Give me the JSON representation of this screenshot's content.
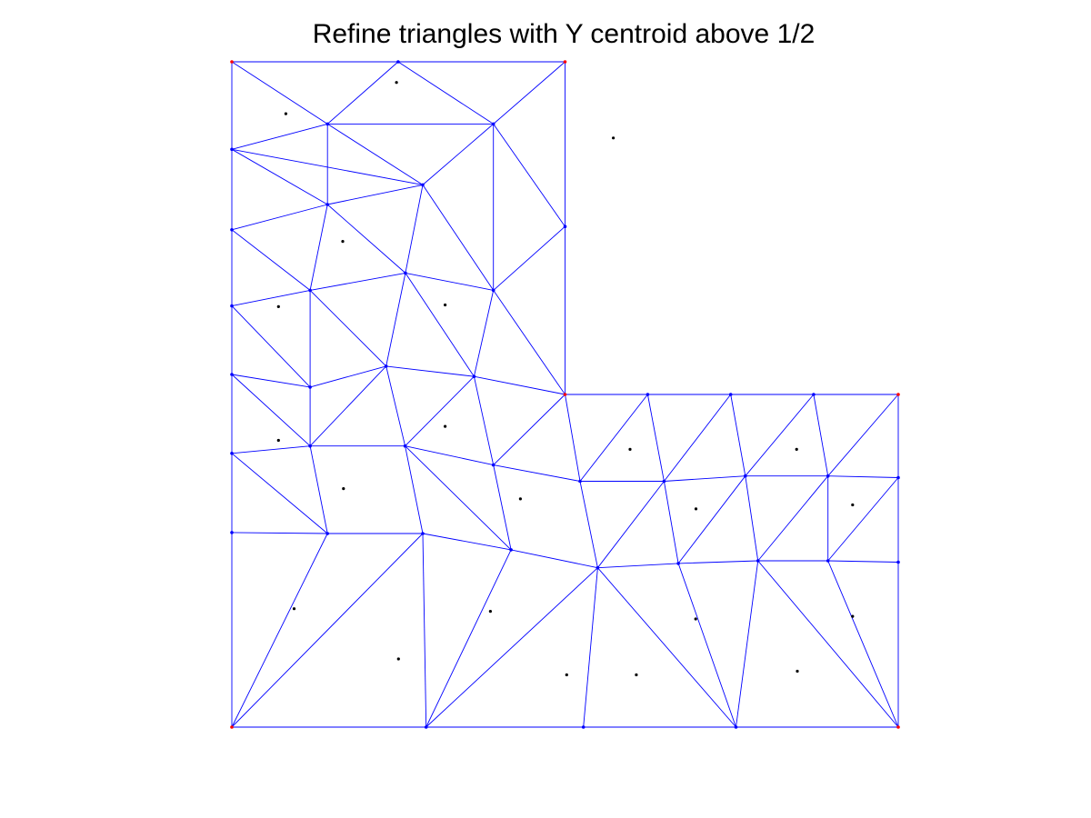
{
  "title": "Refine triangles with Y centroid above 1/2",
  "colors": {
    "background": "#ffffff",
    "edge": "#0000ff",
    "node": "#0000ff",
    "corner_node": "#ff0000",
    "centroid": "#000000",
    "title": "#000000"
  },
  "mesh": {
    "description_units": "data coordinates, x in [-1,1], y in [-1,1] (L-shaped domain)",
    "corner_nodes": [
      [
        -1,
        1
      ],
      [
        0,
        1
      ],
      [
        0,
        0
      ],
      [
        1,
        0
      ],
      [
        1,
        -1
      ],
      [
        -1,
        -1
      ]
    ],
    "nodes": [
      [
        -1.0,
        1.0
      ],
      [
        -0.501,
        1.0
      ],
      [
        0.0,
        1.0
      ],
      [
        -0.713,
        0.813
      ],
      [
        -0.215,
        0.813
      ],
      [
        -1.0,
        0.737
      ],
      [
        -0.427,
        0.63
      ],
      [
        -0.713,
        0.571
      ],
      [
        0.0,
        0.505
      ],
      [
        -1.0,
        0.495
      ],
      [
        -0.479,
        0.365
      ],
      [
        -0.215,
        0.313
      ],
      [
        -0.765,
        0.313
      ],
      [
        -1.0,
        0.266
      ],
      [
        -0.537,
        0.085
      ],
      [
        -0.273,
        0.054
      ],
      [
        -0.765,
        0.022
      ],
      [
        -1.0,
        0.06
      ],
      [
        0.0,
        0.0
      ],
      [
        0.248,
        0.0
      ],
      [
        0.497,
        0.0
      ],
      [
        0.746,
        0.0
      ],
      [
        1.0,
        0.0
      ],
      [
        -0.765,
        -0.155
      ],
      [
        -1.0,
        -0.177
      ],
      [
        -0.48,
        -0.155
      ],
      [
        -0.215,
        -0.212
      ],
      [
        0.045,
        -0.261
      ],
      [
        0.297,
        -0.261
      ],
      [
        0.541,
        -0.245
      ],
      [
        0.789,
        -0.245
      ],
      [
        1.0,
        -0.25
      ],
      [
        -1.0,
        -0.415
      ],
      [
        -0.713,
        -0.418
      ],
      [
        -0.427,
        -0.418
      ],
      [
        -0.162,
        -0.467
      ],
      [
        0.098,
        -0.521
      ],
      [
        0.34,
        -0.508
      ],
      [
        0.579,
        -0.5
      ],
      [
        0.789,
        -0.5
      ],
      [
        1.0,
        -0.504
      ],
      [
        -1.0,
        -1.0
      ],
      [
        -0.417,
        -1.0
      ],
      [
        0.055,
        -1.0
      ],
      [
        0.513,
        -1.0
      ],
      [
        1.0,
        -1.0
      ]
    ],
    "edges": [
      [
        0,
        1
      ],
      [
        1,
        2
      ],
      [
        0,
        5
      ],
      [
        5,
        9
      ],
      [
        9,
        13
      ],
      [
        13,
        17
      ],
      [
        17,
        24
      ],
      [
        24,
        32
      ],
      [
        32,
        41
      ],
      [
        2,
        8
      ],
      [
        8,
        18
      ],
      [
        18,
        19
      ],
      [
        19,
        20
      ],
      [
        20,
        21
      ],
      [
        21,
        22
      ],
      [
        22,
        31
      ],
      [
        31,
        40
      ],
      [
        40,
        45
      ],
      [
        41,
        42
      ],
      [
        42,
        43
      ],
      [
        43,
        44
      ],
      [
        44,
        45
      ],
      [
        0,
        3
      ],
      [
        1,
        3
      ],
      [
        1,
        4
      ],
      [
        2,
        4
      ],
      [
        3,
        4
      ],
      [
        3,
        5
      ],
      [
        3,
        7
      ],
      [
        3,
        6
      ],
      [
        4,
        6
      ],
      [
        4,
        8
      ],
      [
        4,
        11
      ],
      [
        5,
        7
      ],
      [
        5,
        6
      ],
      [
        6,
        7
      ],
      [
        6,
        11
      ],
      [
        6,
        10
      ],
      [
        7,
        9
      ],
      [
        7,
        12
      ],
      [
        7,
        10
      ],
      [
        9,
        12
      ],
      [
        10,
        12
      ],
      [
        10,
        11
      ],
      [
        8,
        11
      ],
      [
        11,
        18
      ],
      [
        10,
        15
      ],
      [
        11,
        15
      ],
      [
        10,
        14
      ],
      [
        12,
        14
      ],
      [
        12,
        16
      ],
      [
        12,
        13
      ],
      [
        13,
        16
      ],
      [
        14,
        16
      ],
      [
        14,
        15
      ],
      [
        15,
        18
      ],
      [
        15,
        25
      ],
      [
        14,
        25
      ],
      [
        16,
        17
      ],
      [
        16,
        23
      ],
      [
        14,
        23
      ],
      [
        17,
        23
      ],
      [
        15,
        26
      ],
      [
        25,
        26
      ],
      [
        18,
        26
      ],
      [
        18,
        27
      ],
      [
        19,
        27
      ],
      [
        19,
        28
      ],
      [
        20,
        28
      ],
      [
        20,
        29
      ],
      [
        21,
        29
      ],
      [
        21,
        30
      ],
      [
        22,
        30
      ],
      [
        27,
        28
      ],
      [
        28,
        29
      ],
      [
        29,
        30
      ],
      [
        30,
        31
      ],
      [
        23,
        24
      ],
      [
        24,
        33
      ],
      [
        23,
        33
      ],
      [
        23,
        25
      ],
      [
        25,
        34
      ],
      [
        33,
        34
      ],
      [
        26,
        35
      ],
      [
        26,
        27
      ],
      [
        25,
        35
      ],
      [
        34,
        35
      ],
      [
        27,
        36
      ],
      [
        28,
        36
      ],
      [
        28,
        37
      ],
      [
        29,
        37
      ],
      [
        29,
        38
      ],
      [
        30,
        38
      ],
      [
        31,
        39
      ],
      [
        30,
        39
      ],
      [
        38,
        39
      ],
      [
        39,
        40
      ],
      [
        35,
        36
      ],
      [
        36,
        37
      ],
      [
        37,
        38
      ],
      [
        32,
        33
      ],
      [
        33,
        41
      ],
      [
        34,
        42
      ],
      [
        34,
        41
      ],
      [
        35,
        42
      ],
      [
        42,
        36
      ],
      [
        36,
        43
      ],
      [
        36,
        44
      ],
      [
        37,
        44
      ],
      [
        38,
        44
      ],
      [
        38,
        45
      ],
      [
        39,
        45
      ]
    ],
    "centroids": [
      [
        -0.506,
        0.938
      ],
      [
        -0.838,
        0.844
      ],
      [
        0.145,
        0.771
      ],
      [
        -0.667,
        0.46
      ],
      [
        -0.36,
        0.269
      ],
      [
        -0.86,
        0.264
      ],
      [
        -0.36,
        -0.096
      ],
      [
        -0.86,
        -0.138
      ],
      [
        -0.665,
        -0.283
      ],
      [
        -0.134,
        -0.314
      ],
      [
        0.195,
        -0.165
      ],
      [
        0.393,
        -0.344
      ],
      [
        0.695,
        -0.165
      ],
      [
        0.863,
        -0.332
      ],
      [
        -0.813,
        -0.644
      ],
      [
        -0.5,
        -0.795
      ],
      [
        -0.224,
        -0.652
      ],
      [
        0.005,
        -0.843
      ],
      [
        0.214,
        -0.843
      ],
      [
        0.392,
        -0.675
      ],
      [
        0.697,
        -0.832
      ],
      [
        0.863,
        -0.667
      ]
    ]
  }
}
